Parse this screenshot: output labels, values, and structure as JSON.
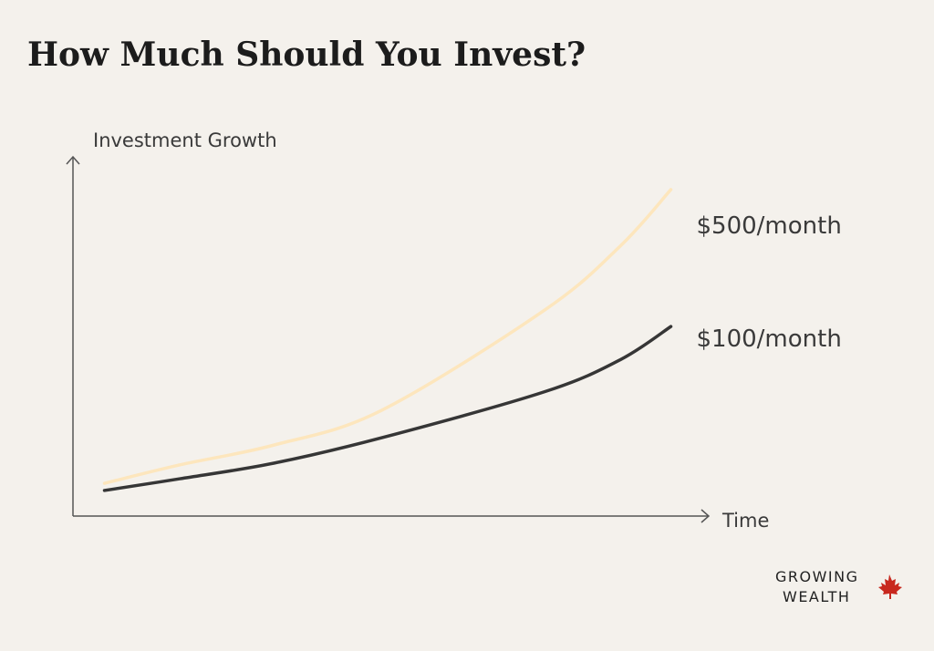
{
  "chart_data": {
    "type": "line",
    "title": "How Much Should You Invest?",
    "y_label": "Investment Growth",
    "x_label": "Time",
    "x": [
      5,
      17,
      32,
      49,
      75,
      87,
      95
    ],
    "xlim": [
      0,
      100
    ],
    "ylim": [
      0,
      100
    ],
    "series": [
      {
        "name": "$500/month",
        "color": "#fde6bd",
        "values": [
          9.2,
          14.4,
          20,
          29.7,
          58,
          76,
          91.8
        ]
      },
      {
        "name": "$100/month",
        "color": "#363636",
        "values": [
          7.2,
          10.5,
          14.9,
          22,
          35,
          44,
          53.3
        ]
      }
    ]
  },
  "logo": {
    "line1": "GROWING",
    "line2": "WEALTH"
  }
}
